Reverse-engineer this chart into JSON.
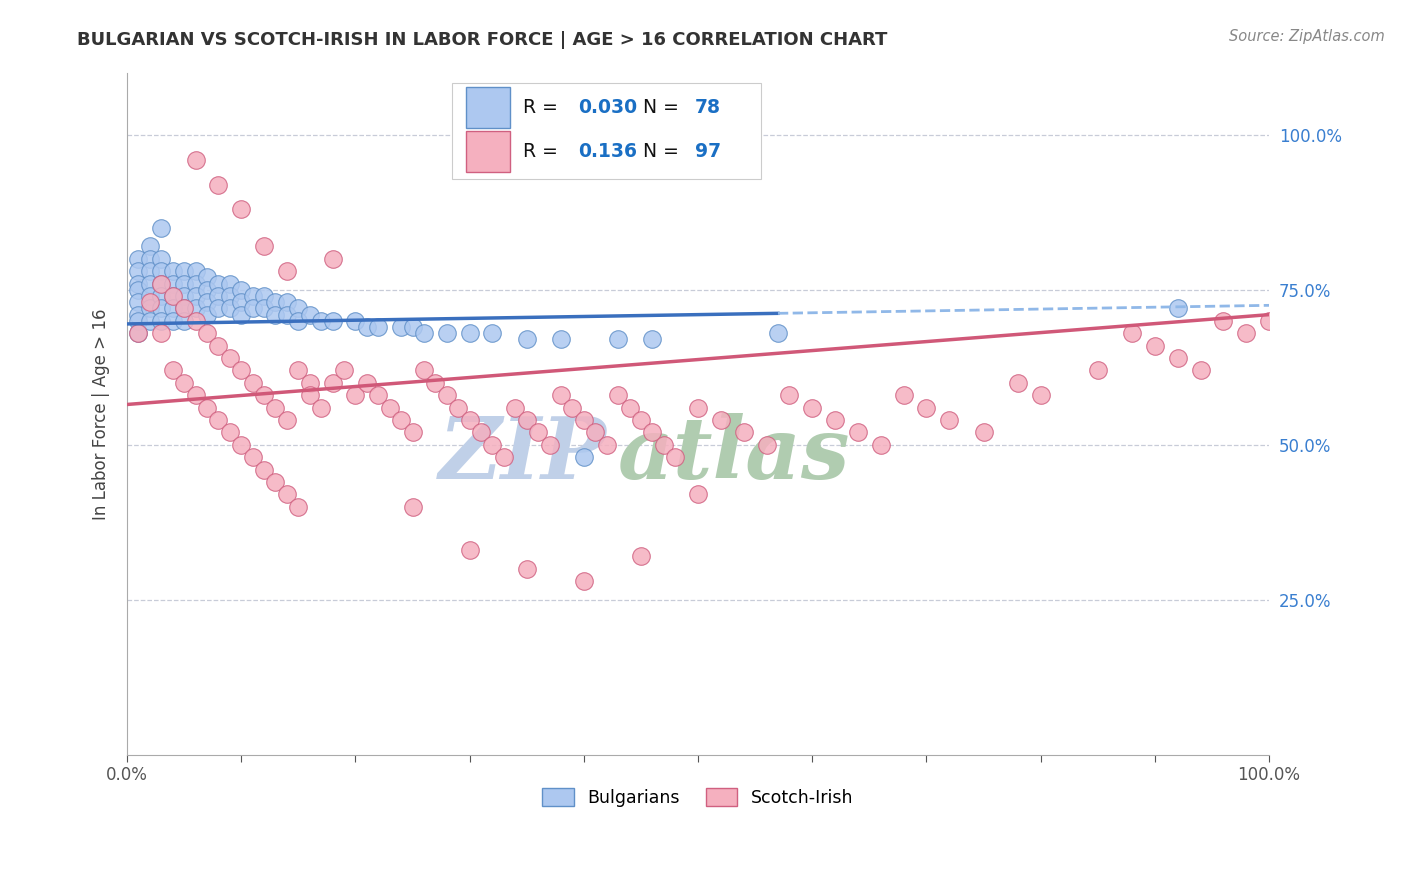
{
  "title": "BULGARIAN VS SCOTCH-IRISH IN LABOR FORCE | AGE > 16 CORRELATION CHART",
  "source_text": "Source: ZipAtlas.com",
  "ylabel": "In Labor Force | Age > 16",
  "xlim": [
    0.0,
    1.0
  ],
  "ylim": [
    0.0,
    1.1
  ],
  "y_ticks": [
    0.25,
    0.5,
    0.75,
    1.0
  ],
  "y_tick_labels": [
    "25.0%",
    "50.0%",
    "75.0%",
    "100.0%"
  ],
  "bulgarian_R": "0.030",
  "bulgarian_N": "78",
  "scotch_irish_R": "0.136",
  "scotch_irish_N": "97",
  "bulgarian_color": "#adc8f0",
  "bulgarian_edge": "#6090c8",
  "scotch_irish_color": "#f5b0bf",
  "scotch_irish_edge": "#d06080",
  "trend_blue_solid": "#3a6fbe",
  "trend_blue_dash": "#90b8e8",
  "trend_pink": "#d05878",
  "grid_color": "#c8ccd8",
  "watermark_color_zip": "#b8c8e0",
  "watermark_color_atlas": "#a8c4a8",
  "background_color": "#ffffff",
  "title_color": "#333333",
  "legend_R_color": "#1a6fc4",
  "legend_N_color": "#111111",
  "legend_label_color": "#111111",
  "source_color": "#888888",
  "ytick_color": "#3a7fd0",
  "xtick_color": "#555555",
  "bulgarian_x": [
    0.01,
    0.01,
    0.01,
    0.01,
    0.01,
    0.01,
    0.01,
    0.01,
    0.02,
    0.02,
    0.02,
    0.02,
    0.02,
    0.02,
    0.02,
    0.03,
    0.03,
    0.03,
    0.03,
    0.03,
    0.03,
    0.03,
    0.04,
    0.04,
    0.04,
    0.04,
    0.04,
    0.05,
    0.05,
    0.05,
    0.05,
    0.05,
    0.06,
    0.06,
    0.06,
    0.06,
    0.07,
    0.07,
    0.07,
    0.07,
    0.08,
    0.08,
    0.08,
    0.09,
    0.09,
    0.09,
    0.1,
    0.1,
    0.1,
    0.11,
    0.11,
    0.12,
    0.12,
    0.13,
    0.13,
    0.14,
    0.14,
    0.15,
    0.15,
    0.16,
    0.17,
    0.18,
    0.2,
    0.21,
    0.22,
    0.24,
    0.25,
    0.26,
    0.28,
    0.3,
    0.32,
    0.35,
    0.38,
    0.4,
    0.43,
    0.46,
    0.57,
    0.92
  ],
  "bulgarian_y": [
    0.8,
    0.78,
    0.76,
    0.75,
    0.73,
    0.71,
    0.7,
    0.68,
    0.82,
    0.8,
    0.78,
    0.76,
    0.74,
    0.72,
    0.7,
    0.8,
    0.78,
    0.76,
    0.74,
    0.72,
    0.85,
    0.7,
    0.78,
    0.76,
    0.74,
    0.72,
    0.7,
    0.78,
    0.76,
    0.74,
    0.72,
    0.7,
    0.78,
    0.76,
    0.74,
    0.72,
    0.77,
    0.75,
    0.73,
    0.71,
    0.76,
    0.74,
    0.72,
    0.76,
    0.74,
    0.72,
    0.75,
    0.73,
    0.71,
    0.74,
    0.72,
    0.74,
    0.72,
    0.73,
    0.71,
    0.73,
    0.71,
    0.72,
    0.7,
    0.71,
    0.7,
    0.7,
    0.7,
    0.69,
    0.69,
    0.69,
    0.69,
    0.68,
    0.68,
    0.68,
    0.68,
    0.67,
    0.67,
    0.48,
    0.67,
    0.67,
    0.68,
    0.72
  ],
  "scotch_irish_x": [
    0.01,
    0.02,
    0.03,
    0.03,
    0.04,
    0.04,
    0.05,
    0.05,
    0.06,
    0.06,
    0.07,
    0.07,
    0.08,
    0.08,
    0.09,
    0.09,
    0.1,
    0.1,
    0.11,
    0.11,
    0.12,
    0.12,
    0.13,
    0.13,
    0.14,
    0.14,
    0.15,
    0.15,
    0.16,
    0.16,
    0.17,
    0.18,
    0.19,
    0.2,
    0.21,
    0.22,
    0.23,
    0.24,
    0.25,
    0.26,
    0.27,
    0.28,
    0.29,
    0.3,
    0.31,
    0.32,
    0.33,
    0.34,
    0.35,
    0.36,
    0.37,
    0.38,
    0.39,
    0.4,
    0.41,
    0.42,
    0.43,
    0.44,
    0.45,
    0.46,
    0.47,
    0.48,
    0.5,
    0.52,
    0.54,
    0.56,
    0.58,
    0.6,
    0.62,
    0.64,
    0.66,
    0.68,
    0.7,
    0.72,
    0.75,
    0.78,
    0.8,
    0.85,
    0.88,
    0.9,
    0.92,
    0.94,
    0.96,
    0.98,
    1.0,
    0.3,
    0.35,
    0.4,
    0.45,
    0.5,
    0.1,
    0.12,
    0.14,
    0.08,
    0.06,
    0.18,
    0.25
  ],
  "scotch_irish_y": [
    0.68,
    0.73,
    0.76,
    0.68,
    0.74,
    0.62,
    0.72,
    0.6,
    0.7,
    0.58,
    0.68,
    0.56,
    0.66,
    0.54,
    0.64,
    0.52,
    0.62,
    0.5,
    0.6,
    0.48,
    0.58,
    0.46,
    0.56,
    0.44,
    0.54,
    0.42,
    0.62,
    0.4,
    0.6,
    0.58,
    0.56,
    0.6,
    0.62,
    0.58,
    0.6,
    0.58,
    0.56,
    0.54,
    0.52,
    0.62,
    0.6,
    0.58,
    0.56,
    0.54,
    0.52,
    0.5,
    0.48,
    0.56,
    0.54,
    0.52,
    0.5,
    0.58,
    0.56,
    0.54,
    0.52,
    0.5,
    0.58,
    0.56,
    0.54,
    0.52,
    0.5,
    0.48,
    0.56,
    0.54,
    0.52,
    0.5,
    0.58,
    0.56,
    0.54,
    0.52,
    0.5,
    0.58,
    0.56,
    0.54,
    0.52,
    0.6,
    0.58,
    0.62,
    0.68,
    0.66,
    0.64,
    0.62,
    0.7,
    0.68,
    0.7,
    0.33,
    0.3,
    0.28,
    0.32,
    0.42,
    0.88,
    0.82,
    0.78,
    0.92,
    0.96,
    0.8,
    0.4
  ]
}
